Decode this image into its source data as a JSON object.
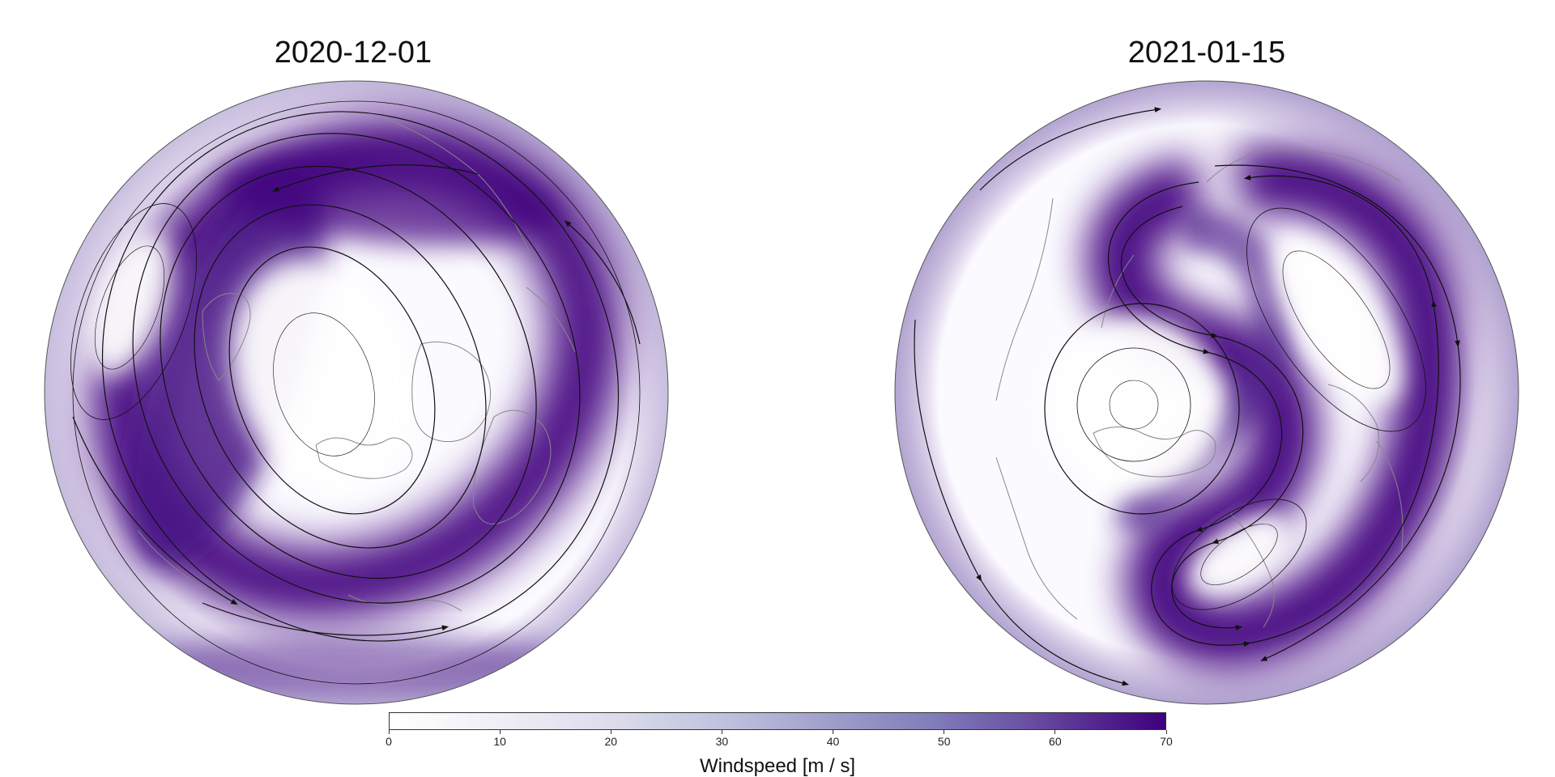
{
  "panels": [
    {
      "title": "2020-12-01",
      "projection": "north-polar-orthographic",
      "feature": "single polar vortex displaced toward Eurasia with strong jet band",
      "colors": {
        "land_outline": "#888888",
        "streamline": "#111111"
      }
    },
    {
      "title": "2021-01-15",
      "projection": "north-polar-orthographic",
      "feature": "split polar vortex with S-shaped jet",
      "colors": {
        "land_outline": "#888888",
        "streamline": "#111111"
      }
    }
  ],
  "colorbar": {
    "label": "Windspeed [m / s]",
    "min": 0,
    "max": 70,
    "ticks": [
      "0",
      "10",
      "20",
      "30",
      "40",
      "50",
      "60",
      "70"
    ],
    "colormap": "Purples",
    "color_low": "#ffffff",
    "color_high": "#3f007d"
  }
}
